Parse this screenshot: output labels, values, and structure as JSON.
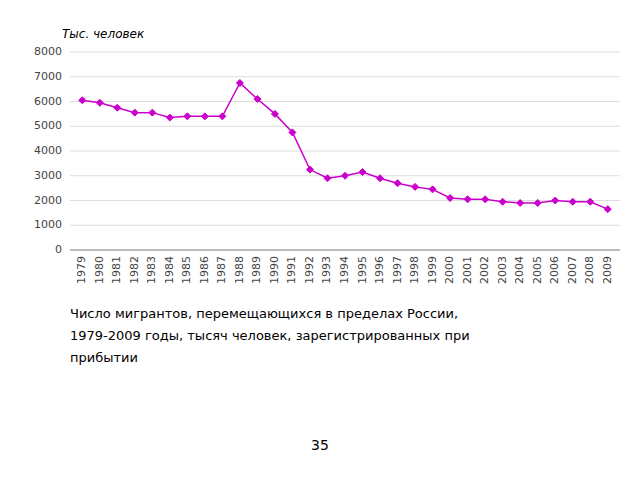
{
  "chart_data": {
    "type": "line",
    "y_label": "Тыс. человек",
    "x": [
      1979,
      1980,
      1981,
      1982,
      1983,
      1984,
      1985,
      1986,
      1987,
      1988,
      1989,
      1990,
      1991,
      1992,
      1993,
      1994,
      1995,
      1996,
      1997,
      1998,
      1999,
      2000,
      2001,
      2002,
      2003,
      2004,
      2005,
      2006,
      2007,
      2008,
      2009
    ],
    "values": [
      6050,
      5950,
      5750,
      5550,
      5550,
      5350,
      5400,
      5400,
      5400,
      6750,
      6100,
      5500,
      4750,
      3250,
      2900,
      3000,
      3150,
      2900,
      2700,
      2550,
      2450,
      2100,
      2050,
      2050,
      1950,
      1900,
      1900,
      2000,
      1950,
      1950,
      1650
    ],
    "color": "#CC00CC",
    "marker": "diamond",
    "xlim": [
      1978.3,
      2009.7
    ],
    "xticks": [
      1979,
      1980,
      1981,
      1982,
      1983,
      1984,
      1985,
      1986,
      1987,
      1988,
      1989,
      1990,
      1991,
      1992,
      1993,
      1994,
      1995,
      1996,
      1997,
      1998,
      1999,
      2000,
      2001,
      2002,
      2003,
      2004,
      2005,
      2006,
      2007,
      2008,
      2009
    ],
    "ylim": [
      0,
      8000
    ],
    "yticks": [
      0,
      1000,
      2000,
      3000,
      4000,
      5000,
      6000,
      7000,
      8000
    ],
    "grid": true,
    "annotations": [
      "Число мигрантов, перемещающихся в пределах России,",
      "1979-2009 годы, тысяч человек, зарегистрированных при",
      "прибытии",
      "35"
    ]
  }
}
